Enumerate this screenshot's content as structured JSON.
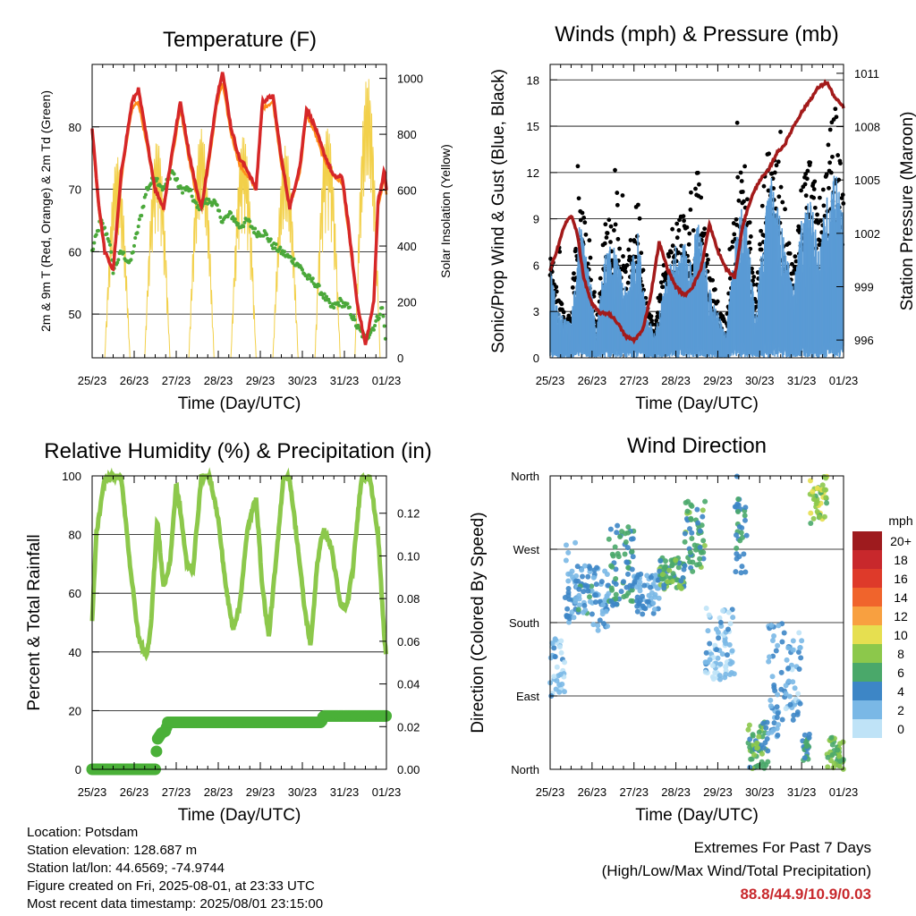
{
  "panels": {
    "temperature": {
      "title": "Temperature (F)",
      "ylabel": "2m & 9m T (Red, Orange) & 2m Td (Green)",
      "ylabel_right": "Solar Insolation (Yellow)",
      "xlabel": "Time (Day/UTC)"
    },
    "winds": {
      "title": "Winds (mph) & Pressure (mb)",
      "ylabel": "Sonic/Prop Wind & Gust (Blue, Black)",
      "ylabel_right": "Station Pressure (Maroon)",
      "xlabel": "Time (Day/UTC)"
    },
    "humidity": {
      "title": "Relative Humidity (%) & Precipitation (in)",
      "ylabel": "Percent & Total Rainfall",
      "xlabel": "Time (Day/UTC)"
    },
    "direction": {
      "title": "Wind Direction",
      "ylabel": "Direction (Colored By Speed)",
      "xlabel": "Time (Day/UTC)",
      "colorbar_unit": "mph"
    }
  },
  "info": {
    "location": "Location: Potsdam",
    "elevation": "Station elevation: 128.687 m",
    "latlon": "Station lat/lon: 44.6569; -74.9744",
    "created": "Figure created on Fri, 2025-08-01, at 23:33 UTC",
    "recent": "Most recent data timestamp: 2025/08/01 23:15:00"
  },
  "extremes": {
    "title": "Extremes For Past 7 Days",
    "subtitle": "(High/Low/Max Wind/Total Precipitation)",
    "values": "88.8/44.9/10.9/0.03"
  },
  "chart_data": [
    {
      "type": "line",
      "x_ticks": [
        "25/23",
        "26/23",
        "27/23",
        "28/23",
        "29/23",
        "30/23",
        "31/23",
        "01/23"
      ],
      "ylim": [
        43,
        90
      ],
      "y_ticks": [
        50,
        60,
        70,
        80
      ],
      "ylim_right": [
        0,
        1050
      ],
      "y_ticks_right": [
        0,
        200,
        400,
        600,
        800,
        1000
      ],
      "grid": "horizontal",
      "series": [
        {
          "color": "#d62728",
          "role": "2m T",
          "x": [
            0,
            0.15,
            0.3,
            0.5,
            0.7,
            0.95,
            1.1,
            1.3,
            1.5,
            1.7,
            1.95,
            2.1,
            2.3,
            2.45,
            2.6,
            2.8,
            2.95,
            3.1,
            3.3,
            3.5,
            3.7,
            3.9,
            4.05,
            4.3,
            4.5,
            4.7,
            4.95,
            5.1,
            5.3,
            5.5,
            5.75,
            5.95,
            6.1,
            6.3,
            6.5,
            6.7,
            6.8,
            6.95,
            7.0
          ],
          "y": [
            80,
            68,
            60,
            57,
            73,
            84,
            86,
            78,
            70,
            67,
            78,
            84,
            76,
            71,
            67,
            76,
            84,
            89,
            80,
            75,
            73,
            70,
            84,
            85,
            75,
            67,
            74,
            83,
            80,
            76,
            72,
            72,
            64,
            52,
            45,
            52,
            68,
            73,
            70
          ]
        },
        {
          "color": "#ff8c1a",
          "role": "9m T",
          "x": [
            0,
            0.15,
            0.3,
            0.5,
            0.7,
            0.95,
            1.1,
            1.3,
            1.5,
            1.7,
            1.95,
            2.1,
            2.3,
            2.45,
            2.6,
            2.8,
            2.95,
            3.1,
            3.3,
            3.5,
            3.7,
            3.9,
            4.05,
            4.3,
            4.5,
            4.7,
            4.95,
            5.1,
            5.3,
            5.5,
            5.75,
            5.95,
            6.1,
            6.3,
            6.5,
            6.7,
            6.8,
            6.95,
            7.0
          ],
          "y": [
            79,
            67,
            60,
            57,
            72,
            83,
            84,
            77,
            70,
            67,
            77,
            83,
            75,
            70,
            67,
            75,
            83,
            87,
            79,
            74,
            72,
            70,
            83,
            84,
            74,
            67,
            73,
            82,
            79,
            75,
            72,
            71,
            63,
            52,
            45,
            52,
            67,
            72,
            69
          ]
        },
        {
          "color": "#4aa83a",
          "role": "2m Td",
          "x": [
            0,
            0.2,
            0.4,
            0.5,
            0.7,
            0.9,
            1.1,
            1.3,
            1.5,
            1.7,
            1.9,
            2.1,
            2.3,
            2.5,
            2.7,
            2.9,
            3.1,
            3.3,
            3.5,
            3.7,
            3.9,
            4.1,
            4.3,
            4.5,
            4.7,
            4.9,
            5.1,
            5.3,
            5.5,
            5.7,
            5.9,
            6.1,
            6.3,
            6.5,
            6.7,
            6.9,
            7.0
          ],
          "y": [
            60,
            65,
            62,
            57,
            60,
            58,
            64,
            70,
            72,
            70,
            73,
            70,
            70,
            67,
            68,
            68,
            65,
            66,
            64,
            65,
            63,
            63,
            61,
            60,
            59,
            58,
            56,
            55,
            53,
            51,
            52,
            51,
            48,
            46,
            48,
            51,
            45
          ]
        },
        {
          "color": "#f2d04a",
          "role": "Solar",
          "kind": "diurnal",
          "peak_x": [
            0.6,
            1.55,
            2.6,
            3.6,
            4.6,
            5.6,
            6.55
          ],
          "peak_y": [
            720,
            780,
            820,
            800,
            760,
            830,
            1010
          ]
        }
      ]
    },
    {
      "type": "scatter",
      "x_ticks": [
        "25/23",
        "26/23",
        "27/23",
        "28/23",
        "29/23",
        "30/23",
        "31/23",
        "01/23"
      ],
      "ylim": [
        0,
        19
      ],
      "y_ticks": [
        0,
        3,
        6,
        9,
        12,
        15,
        18
      ],
      "ylim_right": [
        995,
        1011.5
      ],
      "y_ticks_right": [
        996,
        999,
        1002,
        1005,
        1008,
        1011
      ],
      "grid": "horizontal",
      "series": [
        {
          "color": "#000000",
          "role": "Gust",
          "kind": "gust_points"
        },
        {
          "color": "#5a9bd5",
          "role": "Wind",
          "kind": "wind_band"
        },
        {
          "color": "#a31a1a",
          "role": "Pressure",
          "x": [
            0,
            0.15,
            0.35,
            0.5,
            0.65,
            0.8,
            1.0,
            1.2,
            1.4,
            1.6,
            1.8,
            2.0,
            2.2,
            2.4,
            2.6,
            2.8,
            3.0,
            3.2,
            3.4,
            3.6,
            3.8,
            4.0,
            4.2,
            4.4,
            4.6,
            4.8,
            5.0,
            5.2,
            5.4,
            5.6,
            5.8,
            6.0,
            6.2,
            6.4,
            6.6,
            6.8,
            7.0
          ],
          "y": [
            999.9,
            1001.0,
            1002.5,
            1003.0,
            1002.0,
            999.5,
            998.0,
            997.5,
            997.5,
            997.0,
            996.2,
            996.0,
            996.5,
            998.5,
            1001.5,
            1000.0,
            999.0,
            998.5,
            999.0,
            1000.0,
            1002.5,
            1001.0,
            1000.0,
            999.5,
            1002.5,
            1004.0,
            1005.0,
            1005.5,
            1006.5,
            1007.0,
            1008.0,
            1008.8,
            1009.5,
            1010.2,
            1010.5,
            1009.6,
            1009.1
          ]
        }
      ]
    },
    {
      "type": "line",
      "x_ticks": [
        "25/23",
        "26/23",
        "27/23",
        "28/23",
        "29/23",
        "30/23",
        "31/23",
        "01/23"
      ],
      "ylim": [
        0,
        100
      ],
      "y_ticks": [
        0,
        20,
        40,
        60,
        80,
        100
      ],
      "ylim_right": [
        0,
        0.1375
      ],
      "y_ticks_right": [
        "0.00",
        "0.02",
        "0.04",
        "0.06",
        "0.08",
        "0.10",
        "0.12"
      ],
      "grid": "horizontal",
      "series": [
        {
          "color": "#8cc84b",
          "role": "RH",
          "x": [
            0,
            0.1,
            0.3,
            0.5,
            0.7,
            0.9,
            1.1,
            1.3,
            1.4,
            1.55,
            1.7,
            1.85,
            2.0,
            2.1,
            2.25,
            2.4,
            2.6,
            2.8,
            3.0,
            3.2,
            3.35,
            3.5,
            3.7,
            3.9,
            4.05,
            4.2,
            4.4,
            4.55,
            4.7,
            4.9,
            5.05,
            5.2,
            5.35,
            5.5,
            5.7,
            5.9,
            6.05,
            6.2,
            6.4,
            6.6,
            6.8,
            6.95,
            7.0
          ],
          "y": [
            50,
            80,
            99,
            100,
            99,
            70,
            45,
            38,
            50,
            85,
            62,
            70,
            97,
            88,
            70,
            68,
            100,
            100,
            85,
            60,
            48,
            55,
            82,
            93,
            62,
            45,
            75,
            100,
            99,
            75,
            55,
            42,
            70,
            82,
            75,
            56,
            55,
            68,
            99,
            100,
            80,
            45,
            38
          ]
        },
        {
          "color": "#4ab038",
          "role": "Precip",
          "x": [
            0,
            1.5,
            1.55,
            1.65,
            1.75,
            1.8,
            1.9,
            3.0,
            4.5,
            5.0,
            5.45,
            5.5,
            7.0
          ],
          "y": [
            0,
            0,
            0.014,
            0.017,
            0.018,
            0.022,
            0.022,
            0.022,
            0.022,
            0.022,
            0.022,
            0.025,
            0.025
          ]
        }
      ]
    },
    {
      "type": "scatter",
      "x_ticks": [
        "25/23",
        "26/23",
        "27/23",
        "28/23",
        "29/23",
        "30/23",
        "31/23",
        "01/23"
      ],
      "y_ticks": [
        "North",
        "East",
        "South",
        "West",
        "North"
      ],
      "ylim": [
        0,
        360
      ],
      "grid": "horizontal",
      "colorbar": {
        "labels": [
          "20+",
          "18",
          "16",
          "14",
          "12",
          "10",
          "8",
          "6",
          "4",
          "2",
          "0"
        ],
        "colors": [
          "#9e1b1e",
          "#c8282c",
          "#de3a2a",
          "#f0642c",
          "#f8a040",
          "#e6df50",
          "#8cc84b",
          "#4aa86a",
          "#3d86c6",
          "#7ab8e6",
          "#bfe3f7"
        ]
      }
    }
  ]
}
